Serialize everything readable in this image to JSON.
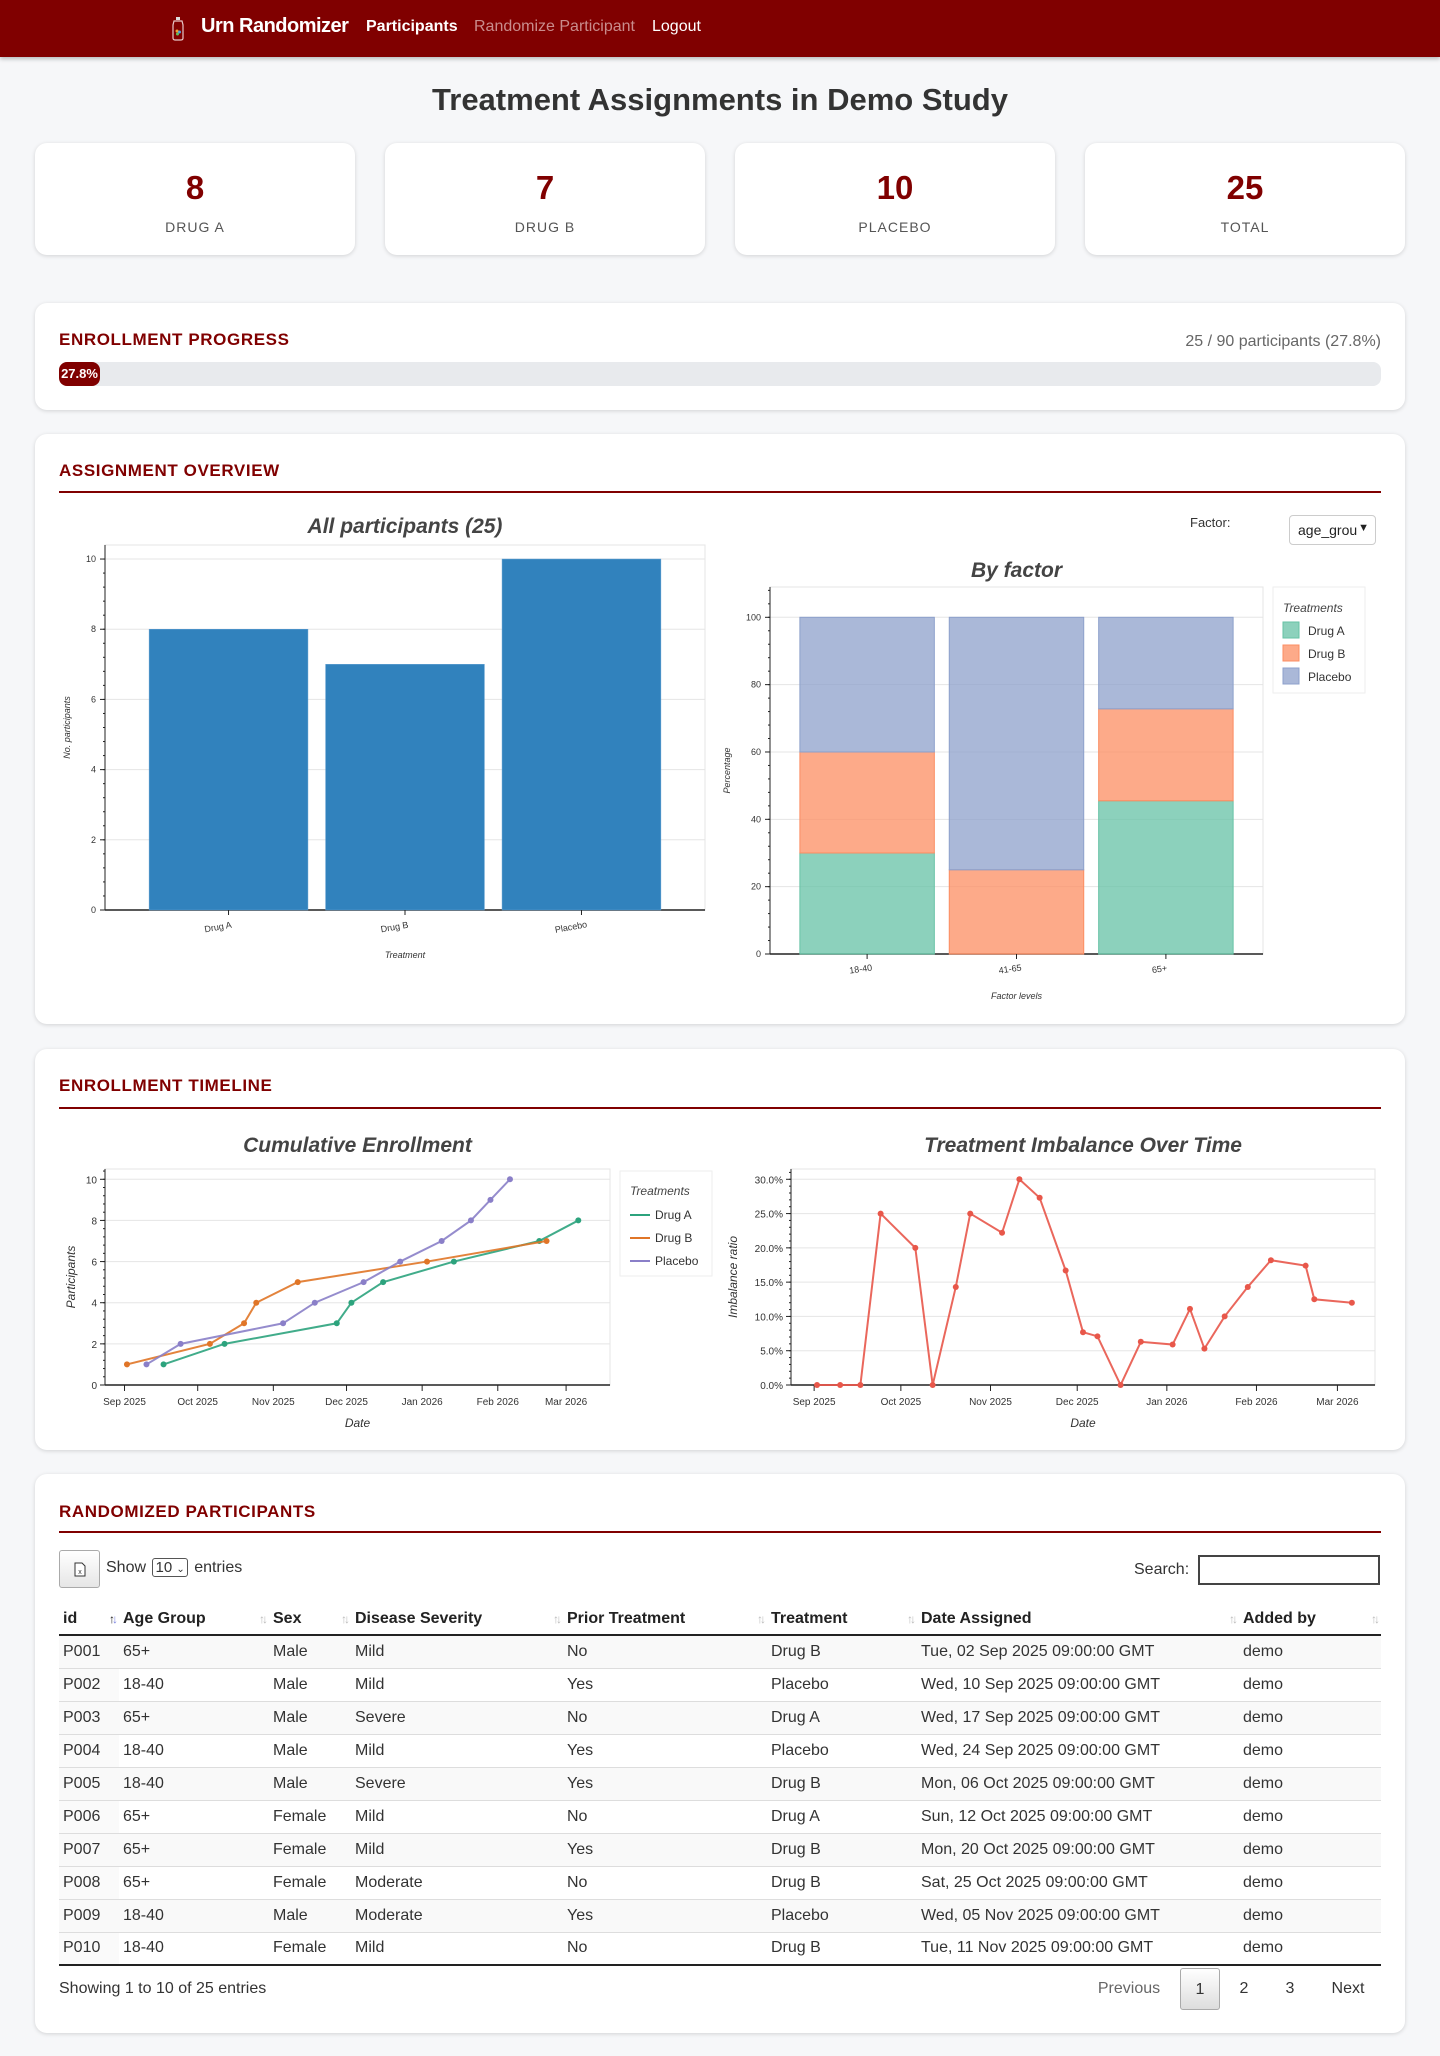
{
  "nav": {
    "brand": "Urn Randomizer",
    "logo_icon": "urn-icon",
    "links": [
      {
        "label": "Participants",
        "state": "active"
      },
      {
        "label": "Randomize Participant",
        "state": "muted"
      },
      {
        "label": "Logout",
        "state": "normal"
      }
    ]
  },
  "page_title": "Treatment Assignments in Demo Study",
  "stats": [
    {
      "value": "8",
      "label": "DRUG A"
    },
    {
      "value": "7",
      "label": "DRUG B"
    },
    {
      "value": "10",
      "label": "PLACEBO"
    },
    {
      "value": "25",
      "label": "TOTAL"
    }
  ],
  "progress": {
    "title": "ENROLLMENT PROGRESS",
    "summary": "25 / 90 participants (27.8%)",
    "label": "27.8%",
    "percent": 27.8
  },
  "overview": {
    "title": "ASSIGNMENT OVERVIEW",
    "factor_label": "Factor:",
    "factor_value": "age_grou"
  },
  "timeline": {
    "title": "ENROLLMENT TIMELINE"
  },
  "colors": {
    "accent": "#800000",
    "bar": "#3182bd",
    "drug_a": "#66c2a5",
    "drug_b": "#fc8d62",
    "placebo": "#8da0cb",
    "imbalance": "#e8574a"
  },
  "chart_data": [
    {
      "type": "bar",
      "title": "All participants (25)",
      "xlabel": "Treatment",
      "ylabel": "No. participants",
      "categories": [
        "Drug A",
        "Drug B",
        "Placebo"
      ],
      "values": [
        8,
        7,
        10
      ],
      "ylim": [
        0,
        10.4
      ],
      "yticks": [
        0,
        2,
        4,
        6,
        8,
        10
      ],
      "grid": true
    },
    {
      "type": "bar",
      "stacked": true,
      "title": "By factor",
      "xlabel": "Factor levels",
      "ylabel": "Percentage",
      "categories": [
        "18-40",
        "41-65",
        "65+"
      ],
      "series": [
        {
          "name": "Drug A",
          "values": [
            30,
            0,
            45.5
          ]
        },
        {
          "name": "Drug B",
          "values": [
            30,
            25,
            27.3
          ]
        },
        {
          "name": "Placebo",
          "values": [
            40,
            75,
            27.2
          ]
        }
      ],
      "ylim": [
        0,
        109
      ],
      "yticks": [
        0,
        20,
        40,
        60,
        80,
        100
      ],
      "legend_title": "Treatments",
      "legend": "right",
      "grid": true
    },
    {
      "type": "line",
      "title": "Cumulative Enrollment",
      "xlabel": "Date",
      "ylabel": "Participants",
      "xticks": [
        "Sep 2025",
        "Oct 2025",
        "Nov 2025",
        "Dec 2025",
        "Jan 2026",
        "Feb 2026",
        "Mar 2026"
      ],
      "xtick_dates": [
        "2025-09-01",
        "2025-10-01",
        "2025-11-01",
        "2025-12-01",
        "2026-01-01",
        "2026-02-01",
        "2026-03-01"
      ],
      "xlim": [
        "2025-08-24",
        "2026-03-19"
      ],
      "ylim": [
        0,
        10.5
      ],
      "yticks": [
        0,
        2,
        4,
        6,
        8,
        10
      ],
      "legend_title": "Treatments",
      "legend": "right",
      "series": [
        {
          "name": "Drug A",
          "x": [
            "2025-09-17",
            "2025-10-12",
            "2025-11-27",
            "2025-12-03",
            "2025-12-16",
            "2026-01-14",
            "2026-02-18",
            "2026-03-06"
          ],
          "y": [
            1,
            2,
            3,
            4,
            5,
            6,
            7,
            8
          ]
        },
        {
          "name": "Drug B",
          "x": [
            "2025-09-02",
            "2025-10-06",
            "2025-10-20",
            "2025-10-25",
            "2025-11-11",
            "2026-01-03",
            "2026-02-21"
          ],
          "y": [
            1,
            2,
            3,
            4,
            5,
            6,
            7
          ]
        },
        {
          "name": "Placebo",
          "x": [
            "2025-09-10",
            "2025-09-24",
            "2025-11-05",
            "2025-11-18",
            "2025-12-08",
            "2025-12-23",
            "2026-01-09",
            "2026-01-21",
            "2026-01-29",
            "2026-02-06"
          ],
          "y": [
            1,
            2,
            3,
            4,
            5,
            6,
            7,
            8,
            9,
            10
          ]
        }
      ]
    },
    {
      "type": "line",
      "title": "Treatment Imbalance Over Time",
      "xlabel": "Date",
      "ylabel": "Imbalance ratio",
      "xticks": [
        "Sep 2025",
        "Oct 2025",
        "Nov 2025",
        "Dec 2025",
        "Jan 2026",
        "Feb 2026",
        "Mar 2026"
      ],
      "xtick_dates": [
        "2025-09-01",
        "2025-10-01",
        "2025-11-01",
        "2025-12-01",
        "2026-01-01",
        "2026-02-01",
        "2026-03-01"
      ],
      "xlim": [
        "2025-08-24",
        "2026-03-14"
      ],
      "ylim": [
        0,
        31.5
      ],
      "yticks": [
        "0.0%",
        "5.0%",
        "10.0%",
        "15.0%",
        "20.0%",
        "25.0%",
        "30.0%"
      ],
      "ytick_values": [
        0,
        5,
        10,
        15,
        20,
        25,
        30
      ],
      "series": [
        {
          "name": "Imbalance",
          "x": [
            "2025-09-02",
            "2025-09-10",
            "2025-09-17",
            "2025-09-24",
            "2025-10-06",
            "2025-10-12",
            "2025-10-20",
            "2025-10-25",
            "2025-11-05",
            "2025-11-11",
            "2025-11-18",
            "2025-11-27",
            "2025-12-03",
            "2025-12-08",
            "2025-12-16",
            "2025-12-23",
            "2026-01-03",
            "2026-01-09",
            "2026-01-14",
            "2026-01-21",
            "2026-01-29",
            "2026-02-06",
            "2026-02-18",
            "2026-02-21",
            "2026-03-06"
          ],
          "y": [
            0,
            0,
            0,
            25,
            20,
            0,
            14.3,
            25,
            22.2,
            30,
            27.3,
            16.7,
            7.7,
            7.1,
            0,
            6.3,
            5.9,
            11.1,
            5.3,
            10,
            14.3,
            18.2,
            17.4,
            12.5,
            12
          ]
        }
      ]
    }
  ],
  "table": {
    "title": "RANDOMIZED PARTICIPANTS",
    "export_icon": "excel-file-icon",
    "show_label": "Show",
    "page_size": "10",
    "entries_label": "entries",
    "search_label": "Search:",
    "search_value": "",
    "columns": [
      "id",
      "Age Group",
      "Sex",
      "Disease Severity",
      "Prior Treatment",
      "Treatment",
      "Date Assigned",
      "Added by"
    ],
    "sorted_column": "id",
    "rows": [
      [
        "P001",
        "65+",
        "Male",
        "Mild",
        "No",
        "Drug B",
        "Tue, 02 Sep 2025 09:00:00 GMT",
        "demo"
      ],
      [
        "P002",
        "18-40",
        "Male",
        "Mild",
        "Yes",
        "Placebo",
        "Wed, 10 Sep 2025 09:00:00 GMT",
        "demo"
      ],
      [
        "P003",
        "65+",
        "Male",
        "Severe",
        "No",
        "Drug A",
        "Wed, 17 Sep 2025 09:00:00 GMT",
        "demo"
      ],
      [
        "P004",
        "18-40",
        "Male",
        "Mild",
        "Yes",
        "Placebo",
        "Wed, 24 Sep 2025 09:00:00 GMT",
        "demo"
      ],
      [
        "P005",
        "18-40",
        "Male",
        "Severe",
        "Yes",
        "Drug B",
        "Mon, 06 Oct 2025 09:00:00 GMT",
        "demo"
      ],
      [
        "P006",
        "65+",
        "Female",
        "Mild",
        "No",
        "Drug A",
        "Sun, 12 Oct 2025 09:00:00 GMT",
        "demo"
      ],
      [
        "P007",
        "65+",
        "Female",
        "Mild",
        "Yes",
        "Drug B",
        "Mon, 20 Oct 2025 09:00:00 GMT",
        "demo"
      ],
      [
        "P008",
        "65+",
        "Female",
        "Moderate",
        "No",
        "Drug B",
        "Sat, 25 Oct 2025 09:00:00 GMT",
        "demo"
      ],
      [
        "P009",
        "18-40",
        "Male",
        "Moderate",
        "Yes",
        "Placebo",
        "Wed, 05 Nov 2025 09:00:00 GMT",
        "demo"
      ],
      [
        "P010",
        "18-40",
        "Female",
        "Mild",
        "No",
        "Drug B",
        "Tue, 11 Nov 2025 09:00:00 GMT",
        "demo"
      ]
    ],
    "info": "Showing 1 to 10 of 25 entries",
    "pagination": {
      "previous": "Previous",
      "pages": [
        "1",
        "2",
        "3"
      ],
      "current": "1",
      "next": "Next"
    }
  }
}
